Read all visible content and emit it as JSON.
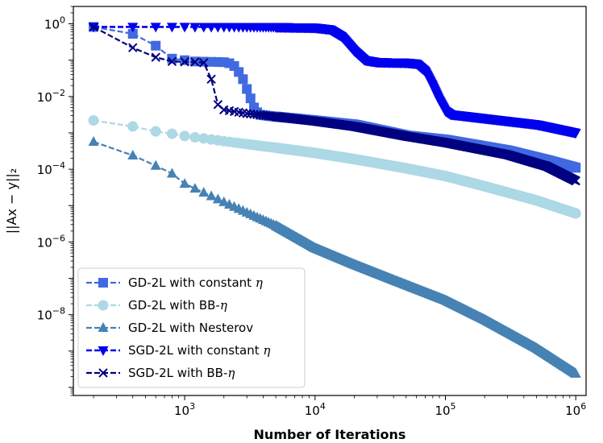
{
  "chart_data": {
    "type": "line",
    "title": "",
    "xlabel": "Number of Iterations",
    "ylabel": "||Ax − y||₂",
    "xscale": "log",
    "yscale": "log",
    "xlim": [
      140,
      1200000
    ],
    "ylim": [
      6e-11,
      3.0
    ],
    "x_ticks": [
      {
        "value": 1000,
        "base": "10",
        "exp": "3"
      },
      {
        "value": 10000,
        "base": "10",
        "exp": "4"
      },
      {
        "value": 100000,
        "base": "10",
        "exp": "5"
      },
      {
        "value": 1000000,
        "base": "10",
        "exp": "6"
      }
    ],
    "y_ticks": [
      {
        "value": 1,
        "base": "10",
        "exp": "0"
      },
      {
        "value": 0.01,
        "base": "10",
        "exp": "−2"
      },
      {
        "value": 0.0001,
        "base": "10",
        "exp": "−4"
      },
      {
        "value": 1e-06,
        "base": "10",
        "exp": "−6"
      },
      {
        "value": 1e-08,
        "base": "10",
        "exp": "−8"
      }
    ],
    "grid": false,
    "legend_position": "lower-left",
    "series": [
      {
        "name": "GD-2L with constant η",
        "legend_main": "GD-2L with constant ",
        "legend_sym": "η",
        "legend_tail": "",
        "color": "#4169e1",
        "marker": "square",
        "linewidth": 2.2,
        "points": [
          [
            200,
            0.82
          ],
          [
            400,
            0.53
          ],
          [
            600,
            0.25
          ],
          [
            800,
            0.11
          ],
          [
            1200,
            0.092
          ],
          [
            1600,
            0.09
          ],
          [
            2000,
            0.088
          ],
          [
            2300,
            0.08
          ],
          [
            2500,
            0.06
          ],
          [
            2800,
            0.03
          ],
          [
            3100,
            0.012
          ],
          [
            3400,
            0.005
          ],
          [
            3700,
            0.0032
          ],
          [
            4500,
            0.0029
          ],
          [
            7000,
            0.0025
          ],
          [
            10000,
            0.0022
          ],
          [
            20000,
            0.0017
          ],
          [
            50000,
            0.00085
          ],
          [
            100000,
            0.00065
          ],
          [
            300000,
            0.00033
          ],
          [
            600000,
            0.00018
          ],
          [
            1000000,
            0.00011
          ]
        ]
      },
      {
        "name": "GD-2L with BB-η",
        "legend_main": "GD-2L with BB-",
        "legend_sym": "η",
        "legend_tail": "",
        "color": "#add8e6",
        "marker": "circle",
        "linewidth": 2.2,
        "points": [
          [
            200,
            0.0022
          ],
          [
            400,
            0.0015
          ],
          [
            600,
            0.0011
          ],
          [
            800,
            0.00095
          ],
          [
            1000,
            0.00082
          ],
          [
            1500,
            0.00068
          ],
          [
            2000,
            0.00059
          ],
          [
            3000,
            0.00049
          ],
          [
            5000,
            0.00039
          ],
          [
            10000,
            0.00028
          ],
          [
            20000,
            0.00019
          ],
          [
            50000,
            0.000106
          ],
          [
            100000,
            6.5e-05
          ],
          [
            200000,
            3.4e-05
          ],
          [
            500000,
            1.39e-05
          ],
          [
            1000000,
            6.1e-06
          ]
        ]
      },
      {
        "name": "GD-2L with Nesterov",
        "legend_main": "GD-2L with Nesterov",
        "legend_sym": "",
        "legend_tail": "",
        "color": "#4682b4",
        "marker": "triangle-up",
        "linewidth": 2.2,
        "points": [
          [
            200,
            0.00057
          ],
          [
            400,
            0.00024
          ],
          [
            600,
            0.000125
          ],
          [
            800,
            7.6e-05
          ],
          [
            1000,
            4e-05
          ],
          [
            2000,
            1.25e-05
          ],
          [
            5000,
            2.8e-06
          ],
          [
            10000,
            6.8e-07
          ],
          [
            20000,
            2.4e-07
          ],
          [
            40000,
            9e-08
          ],
          [
            100000,
            2.5e-08
          ],
          [
            200000,
            7.3e-09
          ],
          [
            500000,
            1.2e-09
          ],
          [
            1000000,
            2.4e-10
          ]
        ]
      },
      {
        "name": "SGD-2L with constant η",
        "legend_main": "SGD-2L with constant ",
        "legend_sym": "η",
        "legend_tail": "",
        "color": "#0000ee",
        "marker": "triangle-down",
        "linewidth": 2.6,
        "points": [
          [
            200,
            0.82
          ],
          [
            1000,
            0.82
          ],
          [
            5000,
            0.81
          ],
          [
            10000,
            0.78
          ],
          [
            13000,
            0.7
          ],
          [
            16000,
            0.45
          ],
          [
            20000,
            0.18
          ],
          [
            24000,
            0.1
          ],
          [
            30000,
            0.088
          ],
          [
            50000,
            0.085
          ],
          [
            60000,
            0.08
          ],
          [
            70000,
            0.05
          ],
          [
            80000,
            0.02
          ],
          [
            90000,
            0.008
          ],
          [
            100000,
            0.004
          ],
          [
            110000,
            0.0032
          ],
          [
            130000,
            0.003
          ],
          [
            200000,
            0.0025
          ],
          [
            500000,
            0.0017
          ],
          [
            1000000,
            0.001
          ]
        ]
      },
      {
        "name": "SGD-2L with BB-η",
        "legend_main": "SGD-2L with BB-",
        "legend_sym": "η",
        "legend_tail": "",
        "color": "#000080",
        "marker": "x",
        "linewidth": 2.2,
        "points": [
          [
            200,
            0.82
          ],
          [
            400,
            0.22
          ],
          [
            600,
            0.12
          ],
          [
            800,
            0.092
          ],
          [
            1000,
            0.09
          ],
          [
            1200,
            0.089
          ],
          [
            1400,
            0.085
          ],
          [
            1600,
            0.03
          ],
          [
            1800,
            0.006
          ],
          [
            2000,
            0.0043
          ],
          [
            3000,
            0.0034
          ],
          [
            5000,
            0.0028
          ],
          [
            10000,
            0.0021
          ],
          [
            20000,
            0.0015
          ],
          [
            50000,
            0.00081
          ],
          [
            100000,
            0.00054
          ],
          [
            300000,
            0.00025
          ],
          [
            600000,
            0.00012
          ],
          [
            1000000,
            4.8e-05
          ]
        ]
      }
    ]
  }
}
